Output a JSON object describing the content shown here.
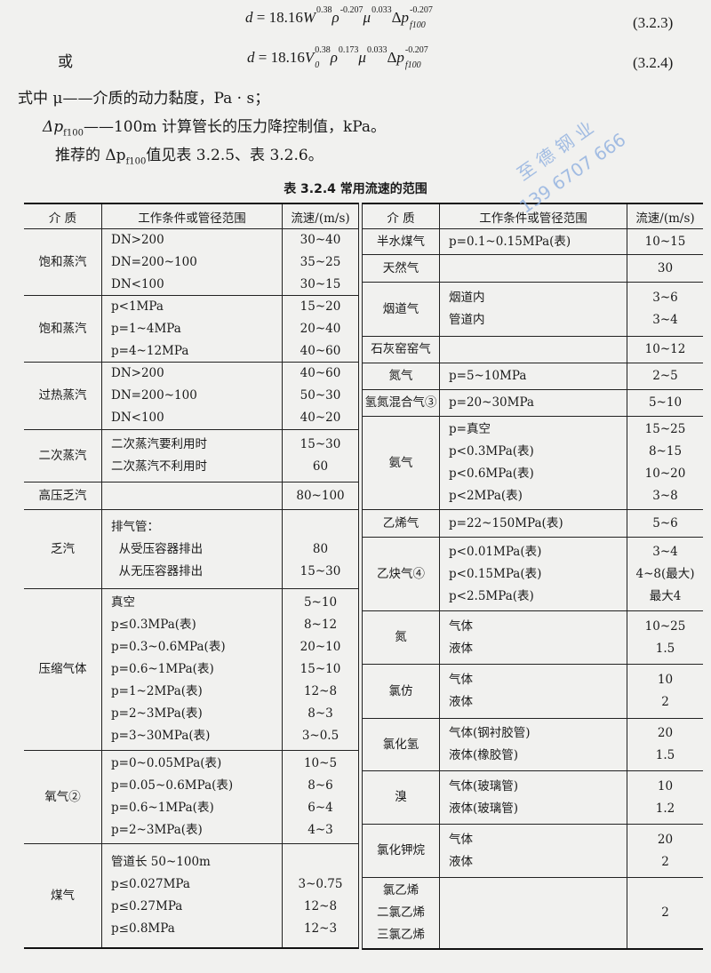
{
  "formulas": [
    {
      "number": "(3.2.3)",
      "parts": [
        {
          "t": "d",
          "i": true
        },
        {
          "t": " = 18.16"
        },
        {
          "t": "W",
          "i": true,
          "sup": "0.38"
        },
        {
          "t": "ρ",
          "i": true,
          "sup": "-0.207"
        },
        {
          "t": "μ",
          "i": true,
          "sup": "0.033"
        },
        {
          "t": "Δ"
        },
        {
          "t": "p",
          "i": true,
          "sup": "-0.207",
          "sub": "f100"
        }
      ]
    },
    {
      "prefix": "或",
      "number": "(3.2.4)",
      "parts": [
        {
          "t": "d",
          "i": true
        },
        {
          "t": " = 18.16"
        },
        {
          "t": "V",
          "i": true,
          "sup": "0.38",
          "sub": "0"
        },
        {
          "t": "ρ",
          "i": true,
          "sup": "0.173"
        },
        {
          "t": "μ",
          "i": true,
          "sup": "0.033"
        },
        {
          "t": "Δ"
        },
        {
          "t": "p",
          "i": true,
          "sup": "-0.207",
          "sub": "f100"
        }
      ]
    }
  ],
  "text": {
    "line1": "式中  μ——介质的动力黏度，Pa · s；",
    "line2_a": "Δp",
    "line2_sub": "f100",
    "line2_b": "——100m 计算管长的压力降控制值，kPa。",
    "line3_a": "推荐的 Δp",
    "line3_sub": "f100",
    "line3_b": "值见表 3.2.5、表 3.2.6。"
  },
  "table": {
    "caption": "表 3.2.4   常用流速的范围",
    "headers": [
      "介  质",
      "工作条件或管径范围",
      "流速/(m/s)"
    ],
    "left": [
      {
        "medium": "饱和蒸汽",
        "conds": [
          "DN>200",
          "DN=200~100",
          "DN<100"
        ],
        "speeds": [
          "30~40",
          "35~25",
          "30~15"
        ]
      },
      {
        "medium": "饱和蒸汽",
        "conds": [
          "p<1MPa",
          "p=1~4MPa",
          "p=4~12MPa"
        ],
        "speeds": [
          "15~20",
          "20~40",
          "40~60"
        ]
      },
      {
        "medium": "过热蒸汽",
        "conds": [
          "DN>200",
          "DN=200~100",
          "DN<100"
        ],
        "speeds": [
          "40~60",
          "50~30",
          "40~20"
        ]
      },
      {
        "medium": "二次蒸汽",
        "conds": [
          "二次蒸汽要利用时",
          "二次蒸汽不利用时"
        ],
        "speeds": [
          "15~30",
          "60"
        ]
      },
      {
        "medium": "高压乏汽",
        "conds": [
          ""
        ],
        "speeds": [
          "80~100"
        ]
      },
      {
        "medium": "乏汽",
        "conds": [
          "排气管：",
          "  从受压容器排出",
          "  从无压容器排出"
        ],
        "speeds": [
          "",
          "80",
          "15~30"
        ]
      },
      {
        "medium": "压缩气体",
        "conds": [
          "真空",
          "p≤0.3MPa(表)",
          "p=0.3~0.6MPa(表)",
          "p=0.6~1MPa(表)",
          "p=1~2MPa(表)",
          "p=2~3MPa(表)",
          "p=3~30MPa(表)"
        ],
        "speeds": [
          "5~10",
          "8~12",
          "20~10",
          "15~10",
          "12~8",
          "8~3",
          "3~0.5"
        ]
      },
      {
        "medium": "氧气②",
        "conds": [
          "p=0~0.05MPa(表)",
          "p=0.05~0.6MPa(表)",
          "p=0.6~1MPa(表)",
          "p=2~3MPa(表)"
        ],
        "speeds": [
          "10~5",
          "8~6",
          "6~4",
          "4~3"
        ]
      },
      {
        "medium": "煤气",
        "conds": [
          "管道长 50~100m",
          "p≤0.027MPa",
          "p≤0.27MPa",
          "p≤0.8MPa"
        ],
        "speeds": [
          "",
          "3~0.75",
          "12~8",
          "12~3"
        ]
      }
    ],
    "right": [
      {
        "medium": "半水煤气",
        "conds": [
          "p=0.1~0.15MPa(表)"
        ],
        "speeds": [
          "10~15"
        ]
      },
      {
        "medium": "天然气",
        "conds": [
          ""
        ],
        "speeds": [
          "30"
        ]
      },
      {
        "medium": "烟道气",
        "conds": [
          "烟道内",
          "管道内"
        ],
        "speeds": [
          "3~6",
          "3~4"
        ]
      },
      {
        "medium": "石灰窑窑气",
        "conds": [
          ""
        ],
        "speeds": [
          "10~12"
        ]
      },
      {
        "medium": "氮气",
        "conds": [
          "p=5~10MPa"
        ],
        "speeds": [
          "2~5"
        ]
      },
      {
        "medium": "氢氮混合气③",
        "conds": [
          "p=20~30MPa"
        ],
        "speeds": [
          "5~10"
        ]
      },
      {
        "medium": "氨气",
        "conds": [
          "p=真空",
          "p<0.3MPa(表)",
          "p<0.6MPa(表)",
          "p<2MPa(表)"
        ],
        "speeds": [
          "15~25",
          "8~15",
          "10~20",
          "3~8"
        ]
      },
      {
        "medium": "乙烯气",
        "conds": [
          "p=22~150MPa(表)"
        ],
        "speeds": [
          "5~6"
        ]
      },
      {
        "medium": "乙炔气④",
        "conds": [
          "p<0.01MPa(表)",
          "p<0.15MPa(表)",
          "p<2.5MPa(表)"
        ],
        "speeds": [
          "3~4",
          "4~8(最大)",
          "最大4"
        ]
      },
      {
        "medium": "氮",
        "conds": [
          "气体",
          "液体"
        ],
        "speeds": [
          "10~25",
          "1.5"
        ]
      },
      {
        "medium": "氯仿",
        "conds": [
          "气体",
          "液体"
        ],
        "speeds": [
          "10",
          "2"
        ]
      },
      {
        "medium": "氯化氢",
        "conds": [
          "气体(钢衬胶管)",
          "液体(橡胶管)"
        ],
        "speeds": [
          "20",
          "1.5"
        ]
      },
      {
        "medium": "溴",
        "conds": [
          "气体(玻璃管)",
          "液体(玻璃管)"
        ],
        "speeds": [
          "10",
          "1.2"
        ]
      },
      {
        "medium": "氯化钾烷",
        "conds": [
          "气体",
          "液体"
        ],
        "speeds": [
          "20",
          "2"
        ]
      },
      {
        "medium": "氯乙烯\n二氯乙烯\n三氯乙烯",
        "conds": [
          ""
        ],
        "speeds": [
          "2"
        ]
      }
    ]
  },
  "watermark": {
    "line1": "至 德 钢 业",
    "line2": "139 6707 666",
    "color": "#8fb0e0"
  }
}
